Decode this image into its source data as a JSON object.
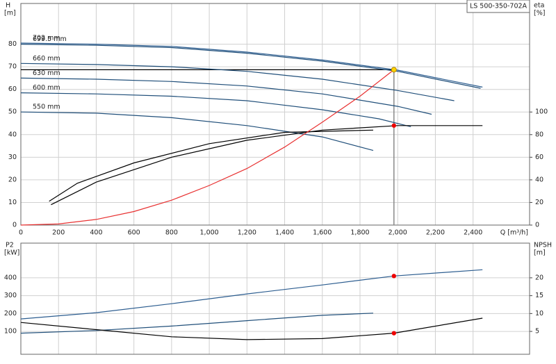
{
  "chart_data": [
    {
      "type": "line",
      "title": "LS 500-350-702A",
      "ylabel": "H",
      "yunit": "[m]",
      "y2label": "eta",
      "y2unit": "[%]",
      "xlabel": "Q [m³/h]",
      "xlim": [
        0,
        2700
      ],
      "xticks": [
        0,
        200,
        400,
        600,
        800,
        {
          "value": 1000,
          "label": "1,000"
        },
        {
          "value": 1200,
          "label": "1,200"
        },
        {
          "value": 1400,
          "label": "1,400"
        },
        {
          "value": 1600,
          "label": "1,600"
        },
        {
          "value": 1800,
          "label": "1,800"
        },
        {
          "value": 2000,
          "label": "2,000"
        },
        {
          "value": 2200,
          "label": "2,200"
        },
        {
          "value": 2400,
          "label": "2,400"
        }
      ],
      "ylim": [
        0,
        98
      ],
      "yticks": [
        0,
        10,
        20,
        30,
        40,
        50,
        60,
        70,
        80
      ],
      "y2lim": [
        0,
        196
      ],
      "y2ticks": [
        0,
        20,
        40,
        60,
        80,
        100
      ],
      "grid": true,
      "series": [
        {
          "name": "702 mm",
          "color": "#2b5c8f",
          "x": [
            0,
            400,
            800,
            1200,
            1600,
            2000,
            2450
          ],
          "values": [
            80.5,
            80,
            79,
            76.5,
            73,
            68.5,
            61
          ]
        },
        {
          "name": "699.5 mm",
          "color": "#1f4e79",
          "x": [
            0,
            400,
            800,
            1200,
            1600,
            2000,
            2440
          ],
          "values": [
            80,
            79.5,
            78.5,
            76,
            72.5,
            68,
            60.5
          ]
        },
        {
          "name": "660 mm",
          "color": "#1f4e79",
          "x": [
            0,
            400,
            800,
            1200,
            1600,
            2000,
            2300
          ],
          "values": [
            71.5,
            71,
            70,
            68,
            64.5,
            59.5,
            55
          ]
        },
        {
          "name": "630 mm",
          "color": "#1f4e79",
          "x": [
            0,
            400,
            800,
            1200,
            1600,
            2000,
            2180
          ],
          "values": [
            65,
            64.5,
            63.5,
            61.5,
            58,
            52.5,
            49
          ]
        },
        {
          "name": "600 mm",
          "color": "#1f4e79",
          "x": [
            0,
            400,
            800,
            1200,
            1600,
            1900,
            2070
          ],
          "values": [
            58.5,
            58,
            57,
            55,
            51,
            47,
            43.5
          ]
        },
        {
          "name": "550 mm",
          "color": "#1f4e79",
          "x": [
            0,
            400,
            800,
            1200,
            1600,
            1870
          ],
          "values": [
            50,
            49.5,
            47.5,
            44,
            39,
            33
          ]
        },
        {
          "color": "#000000",
          "axis": "y2",
          "x": [
            160,
            400,
            800,
            1200,
            1600,
            2000,
            2450
          ],
          "values": [
            18,
            38,
            60,
            75,
            84,
            88,
            88
          ]
        },
        {
          "color": "#000000",
          "axis": "y2",
          "x": [
            150,
            300,
            600,
            1000,
            1400,
            1870
          ],
          "values": [
            21,
            37,
            55,
            72,
            82,
            84
          ]
        },
        {
          "color": "#e83030",
          "x": [
            0,
            200,
            400,
            600,
            800,
            1000,
            1200,
            1400,
            1600,
            1800,
            1980
          ],
          "values": [
            0,
            0.5,
            2.5,
            6,
            11,
            17.5,
            25,
            34.5,
            45.5,
            57,
            68.7
          ]
        }
      ],
      "duty_point": {
        "x": 1980,
        "y": 68.7,
        "y2": 88
      }
    },
    {
      "type": "line",
      "ylabel": "P2",
      "yunit": "[kW]",
      "y2label": "NPSH",
      "y2unit": "[m]",
      "xlim": [
        0,
        2700
      ],
      "ylim": [
        -28,
        594
      ],
      "yticks": [
        100,
        200,
        300,
        400
      ],
      "y2lim": [
        -1.4,
        29.7
      ],
      "y2ticks": [
        5,
        10,
        15,
        20
      ],
      "grid": true,
      "series": [
        {
          "color": "#2b5c8f",
          "x": [
            0,
            400,
            800,
            1200,
            1600,
            1980,
            2450
          ],
          "values": [
            170,
            205,
            255,
            310,
            360,
            410,
            445
          ]
        },
        {
          "color": "#1f4e79",
          "x": [
            0,
            400,
            800,
            1200,
            1600,
            1870
          ],
          "values": [
            90,
            105,
            130,
            160,
            190,
            202
          ]
        },
        {
          "color": "#000000",
          "axis": "y2",
          "x": [
            0,
            400,
            800,
            1200,
            1600,
            1980,
            2450
          ],
          "values": [
            7.5,
            5.5,
            3.5,
            2.7,
            3,
            4.5,
            8.7
          ]
        }
      ],
      "duty_point": {
        "x": 1980,
        "y": 410,
        "y2": 4.5
      }
    }
  ]
}
